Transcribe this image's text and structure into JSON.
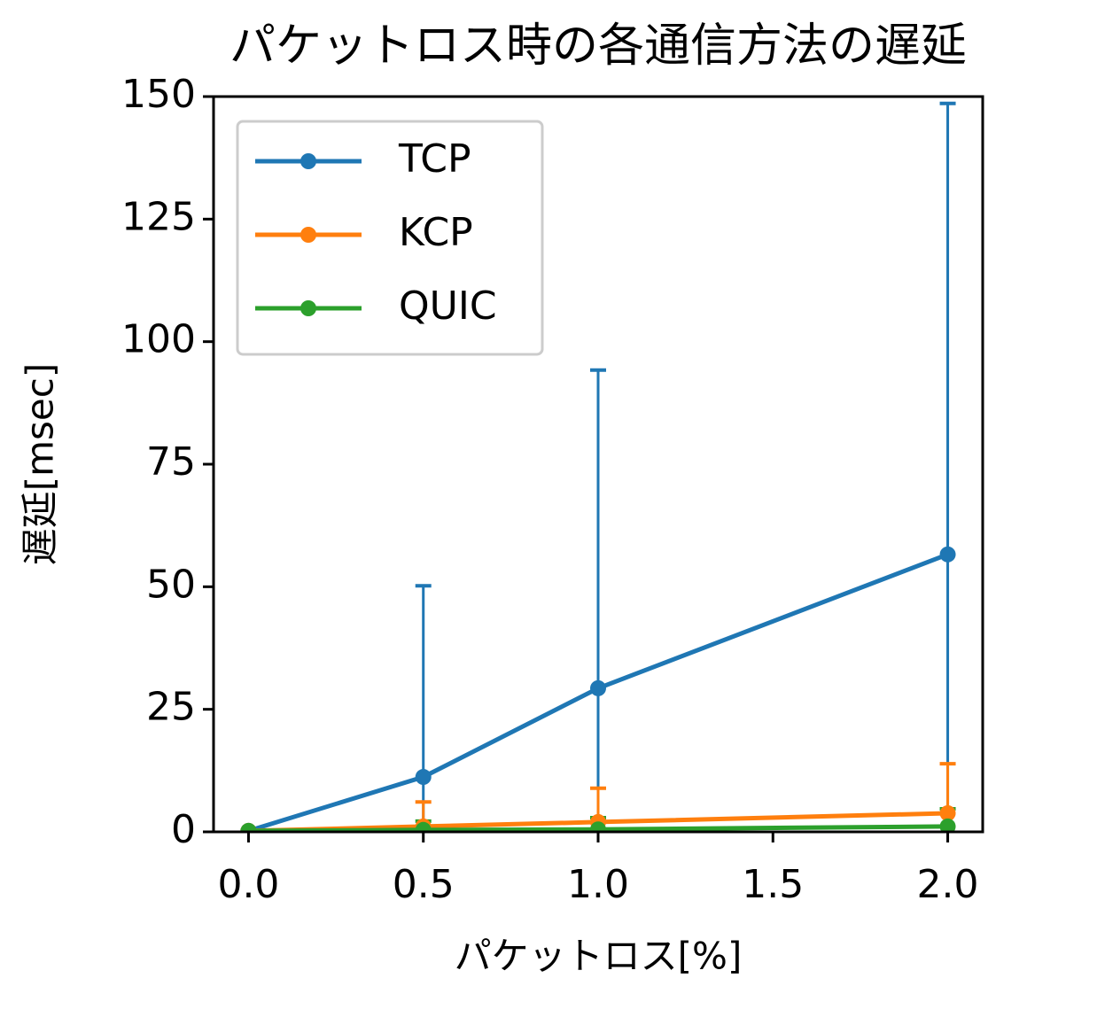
{
  "chart_data": {
    "type": "line",
    "title": "パケットロス時の各通信方法の遅延",
    "xlabel": "パケットロス[%]",
    "ylabel": "遅延[msec]",
    "x": [
      0.0,
      0.5,
      1.0,
      2.0
    ],
    "series": [
      {
        "name": "TCP",
        "color": "#1f77b4",
        "values": [
          0.2,
          11.2,
          29.3,
          56.6
        ],
        "errors": [
          0.1,
          39,
          64.9,
          92
        ]
      },
      {
        "name": "KCP",
        "color": "#ff7f0e",
        "values": [
          0.2,
          1.1,
          2.0,
          3.8
        ],
        "errors": [
          0.1,
          5,
          6.9,
          10.1
        ]
      },
      {
        "name": "QUIC",
        "color": "#2ca02c",
        "values": [
          0.2,
          0.4,
          0.5,
          1.1
        ],
        "errors": [
          0.1,
          1.8,
          2.4,
          3.6
        ]
      }
    ],
    "xlim": [
      -0.1,
      2.1
    ],
    "ylim": [
      0,
      150
    ],
    "xticks": [
      {
        "value": 0,
        "label": "0.0"
      },
      {
        "value": 0.5,
        "label": "0.5"
      },
      {
        "value": 1,
        "label": "1.0"
      },
      {
        "value": 1.5,
        "label": "1.5"
      },
      {
        "value": 2,
        "label": "2.0"
      }
    ],
    "yticks": [
      0,
      25,
      50,
      75,
      100,
      125,
      150
    ],
    "legend": "upper-left"
  }
}
